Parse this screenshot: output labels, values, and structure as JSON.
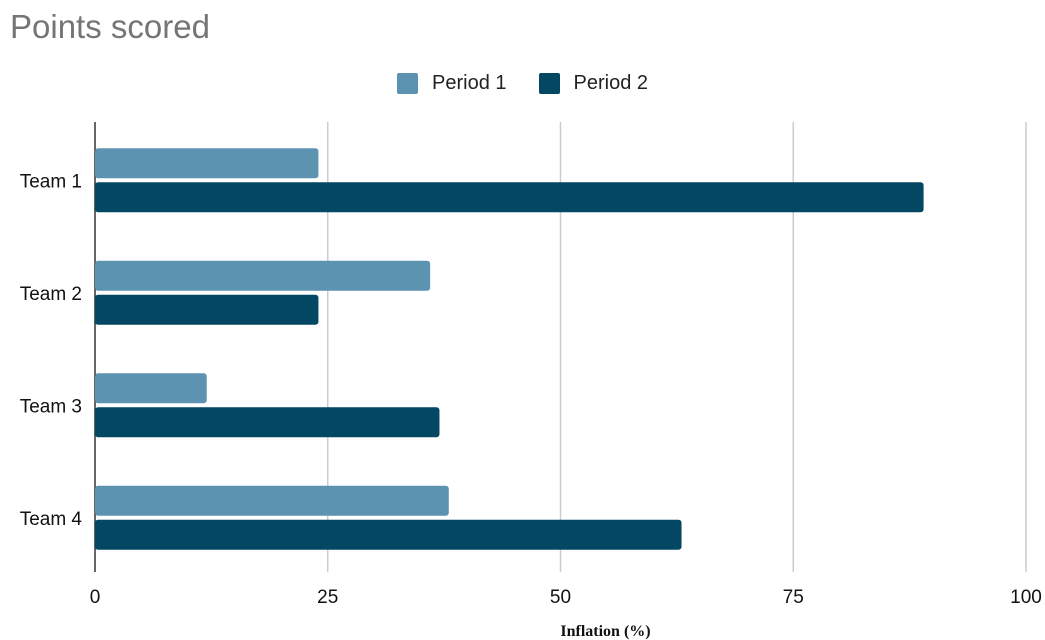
{
  "chart_data": {
    "type": "bar",
    "orientation": "horizontal",
    "title": "Points scored",
    "xlabel": "Inflation (%)",
    "ylabel": "",
    "categories": [
      "Team 1",
      "Team 2",
      "Team 3",
      "Team 4"
    ],
    "series": [
      {
        "name": "Period 1",
        "color": "#5b93b0",
        "values": [
          24,
          36,
          12,
          38
        ]
      },
      {
        "name": "Period 2",
        "color": "#044762",
        "values": [
          89,
          24,
          37,
          63
        ]
      }
    ],
    "xlim": [
      0,
      100
    ],
    "xticks": [
      "0",
      "25",
      "50",
      "75",
      "100"
    ],
    "grid": true,
    "legend_position": "top-center"
  }
}
